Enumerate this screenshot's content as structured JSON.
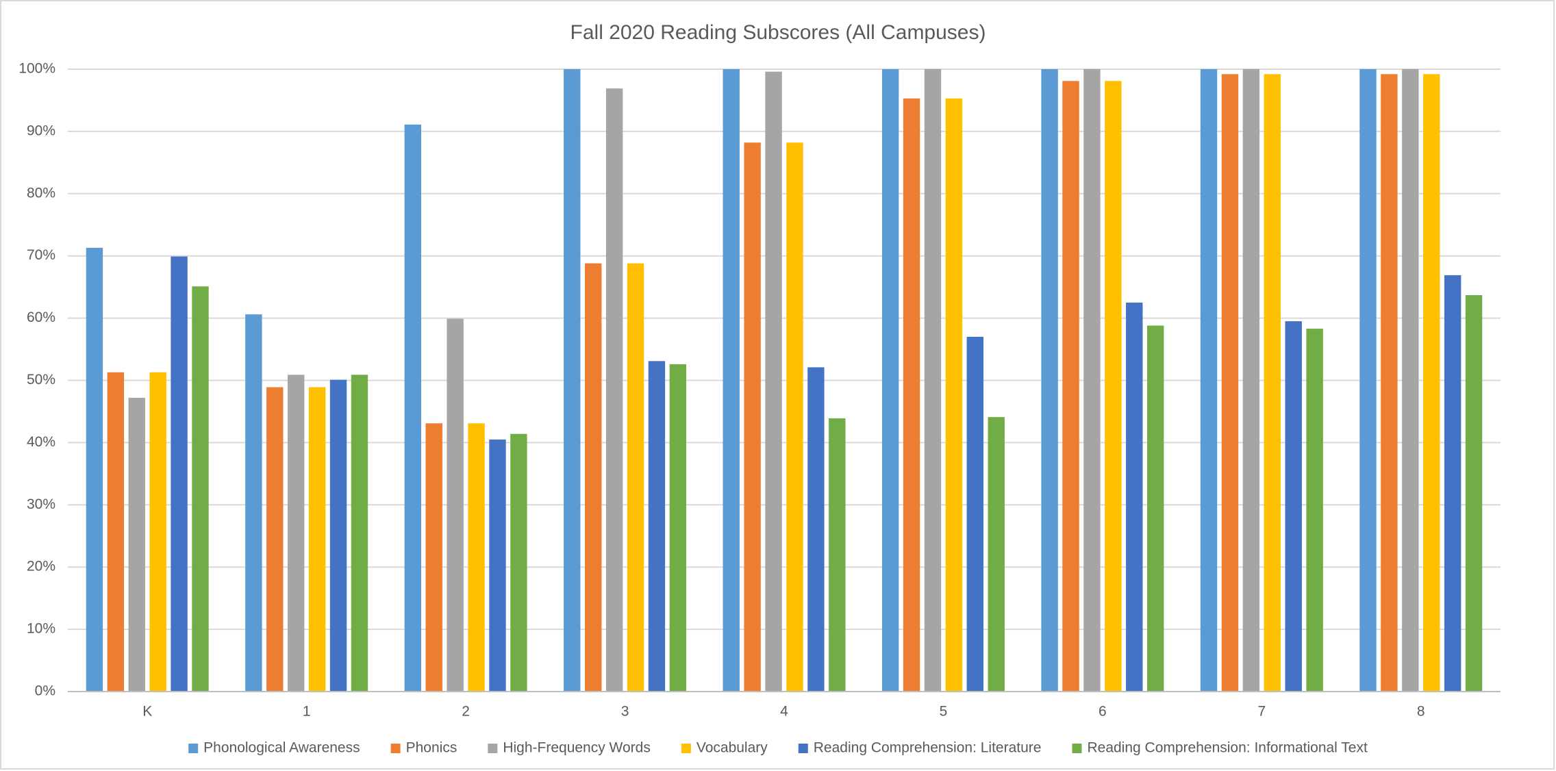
{
  "chart_data": {
    "type": "bar",
    "title": "Fall 2020 Reading Subscores (All Campuses)",
    "categories": [
      "K",
      "1",
      "2",
      "3",
      "4",
      "5",
      "6",
      "7",
      "8"
    ],
    "series": [
      {
        "name": "Phonological Awareness",
        "color": "#5b9bd5",
        "values": [
          71.3,
          60.6,
          91.1,
          100,
          100,
          100,
          100,
          100,
          100
        ]
      },
      {
        "name": "Phonics",
        "color": "#ed7d31",
        "values": [
          51.3,
          48.9,
          43.1,
          68.8,
          88.2,
          95.3,
          98.1,
          99.2,
          99.2
        ]
      },
      {
        "name": "High-Frequency Words",
        "color": "#a5a5a5",
        "values": [
          47.2,
          50.9,
          59.9,
          96.9,
          99.6,
          100,
          100,
          100,
          100
        ]
      },
      {
        "name": "Vocabulary",
        "color": "#ffc000",
        "values": [
          51.3,
          48.9,
          43.1,
          68.8,
          88.2,
          95.3,
          98.1,
          99.2,
          99.2
        ]
      },
      {
        "name": "Reading Comprehension: Literature",
        "color": "#4472c4",
        "values": [
          69.9,
          50.1,
          40.5,
          53.1,
          52.1,
          57.0,
          62.5,
          59.5,
          66.9
        ]
      },
      {
        "name": "Reading Comprehension: Informational Text",
        "color": "#70ad47",
        "values": [
          65.1,
          50.9,
          41.4,
          52.6,
          43.9,
          44.1,
          58.8,
          58.3,
          63.7
        ]
      }
    ],
    "ylim": [
      0,
      100
    ],
    "yticks": [
      {
        "value": 0,
        "label": "0%"
      },
      {
        "value": 10,
        "label": "10%"
      },
      {
        "value": 20,
        "label": "20%"
      },
      {
        "value": 30,
        "label": "30%"
      },
      {
        "value": 40,
        "label": "40%"
      },
      {
        "value": 50,
        "label": "50%"
      },
      {
        "value": 60,
        "label": "60%"
      },
      {
        "value": 70,
        "label": "70%"
      },
      {
        "value": 80,
        "label": "80%"
      },
      {
        "value": 90,
        "label": "90%"
      },
      {
        "value": 100,
        "label": "100%"
      }
    ],
    "grid": true,
    "legend": "bottom"
  }
}
